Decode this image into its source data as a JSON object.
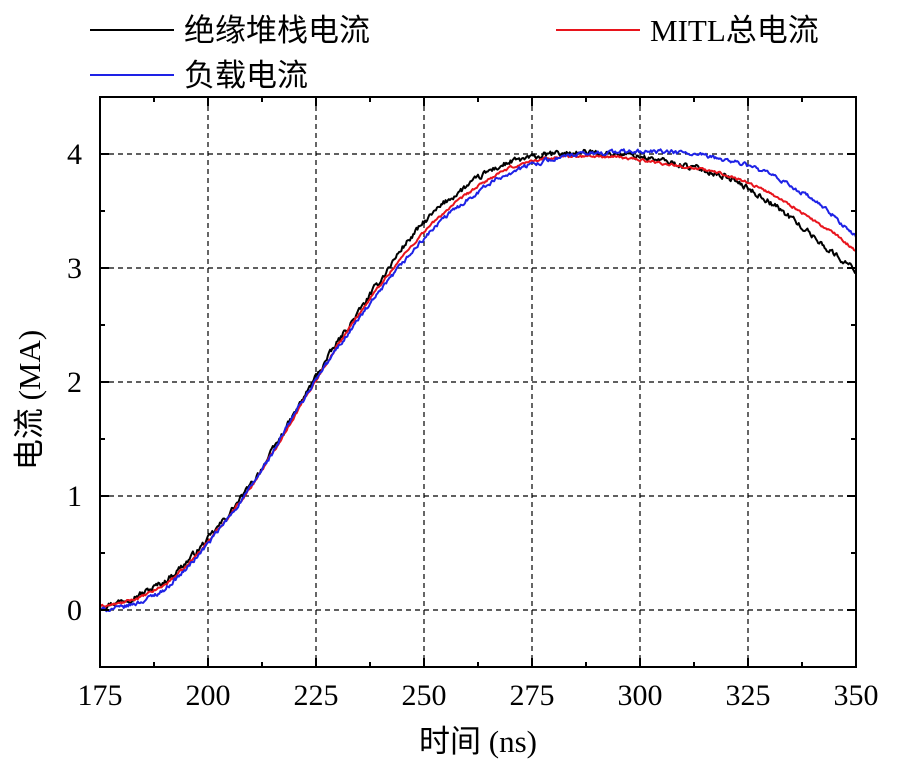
{
  "chart_data": {
    "type": "line",
    "title": "",
    "xlabel": "时间 (ns)",
    "ylabel": "电流 (MA)",
    "xlim": [
      175,
      350
    ],
    "ylim": [
      -0.5,
      4.5
    ],
    "xticks": [
      175,
      200,
      225,
      250,
      275,
      300,
      325,
      350
    ],
    "yticks": [
      0,
      1,
      2,
      3,
      4
    ],
    "grid": true,
    "legend_position": "top",
    "series": [
      {
        "name": "绝缘堆栈电流",
        "color": "#000000",
        "x": [
          175,
          180,
          185,
          190,
          195,
          200,
          205,
          210,
          215,
          220,
          225,
          230,
          235,
          240,
          245,
          250,
          255,
          260,
          265,
          270,
          275,
          280,
          285,
          290,
          295,
          300,
          305,
          310,
          315,
          320,
          325,
          330,
          335,
          340,
          345,
          350
        ],
        "y": [
          0.03,
          0.08,
          0.15,
          0.25,
          0.42,
          0.62,
          0.85,
          1.1,
          1.4,
          1.72,
          2.05,
          2.35,
          2.62,
          2.9,
          3.18,
          3.4,
          3.58,
          3.72,
          3.85,
          3.93,
          3.97,
          4.0,
          4.01,
          4.01,
          4.0,
          3.98,
          3.94,
          3.9,
          3.86,
          3.8,
          3.7,
          3.58,
          3.44,
          3.28,
          3.12,
          2.98
        ]
      },
      {
        "name": "MITL总电流",
        "color": "#e8141c",
        "x": [
          175,
          180,
          185,
          190,
          195,
          200,
          205,
          210,
          215,
          220,
          225,
          230,
          235,
          240,
          245,
          250,
          255,
          260,
          265,
          270,
          275,
          280,
          285,
          290,
          295,
          300,
          305,
          310,
          315,
          320,
          325,
          330,
          335,
          340,
          345,
          350
        ],
        "y": [
          0.03,
          0.06,
          0.12,
          0.22,
          0.38,
          0.6,
          0.83,
          1.08,
          1.38,
          1.7,
          2.02,
          2.32,
          2.6,
          2.86,
          3.1,
          3.32,
          3.5,
          3.65,
          3.78,
          3.88,
          3.94,
          3.97,
          3.98,
          3.98,
          3.97,
          3.95,
          3.92,
          3.89,
          3.86,
          3.82,
          3.75,
          3.66,
          3.55,
          3.42,
          3.3,
          3.15
        ]
      },
      {
        "name": "负载电流",
        "color": "#1e22e6",
        "x": [
          175,
          180,
          185,
          190,
          195,
          200,
          205,
          210,
          215,
          220,
          225,
          230,
          235,
          240,
          245,
          250,
          255,
          260,
          265,
          270,
          275,
          280,
          285,
          290,
          295,
          300,
          305,
          310,
          315,
          320,
          325,
          330,
          335,
          340,
          345,
          350
        ],
        "y": [
          0.0,
          0.02,
          0.08,
          0.18,
          0.36,
          0.58,
          0.82,
          1.08,
          1.38,
          1.72,
          2.02,
          2.3,
          2.56,
          2.8,
          3.04,
          3.26,
          3.45,
          3.6,
          3.74,
          3.84,
          3.91,
          3.96,
          3.99,
          4.01,
          4.02,
          4.02,
          4.02,
          4.01,
          3.98,
          3.95,
          3.9,
          3.82,
          3.72,
          3.6,
          3.45,
          3.27
        ]
      }
    ]
  }
}
